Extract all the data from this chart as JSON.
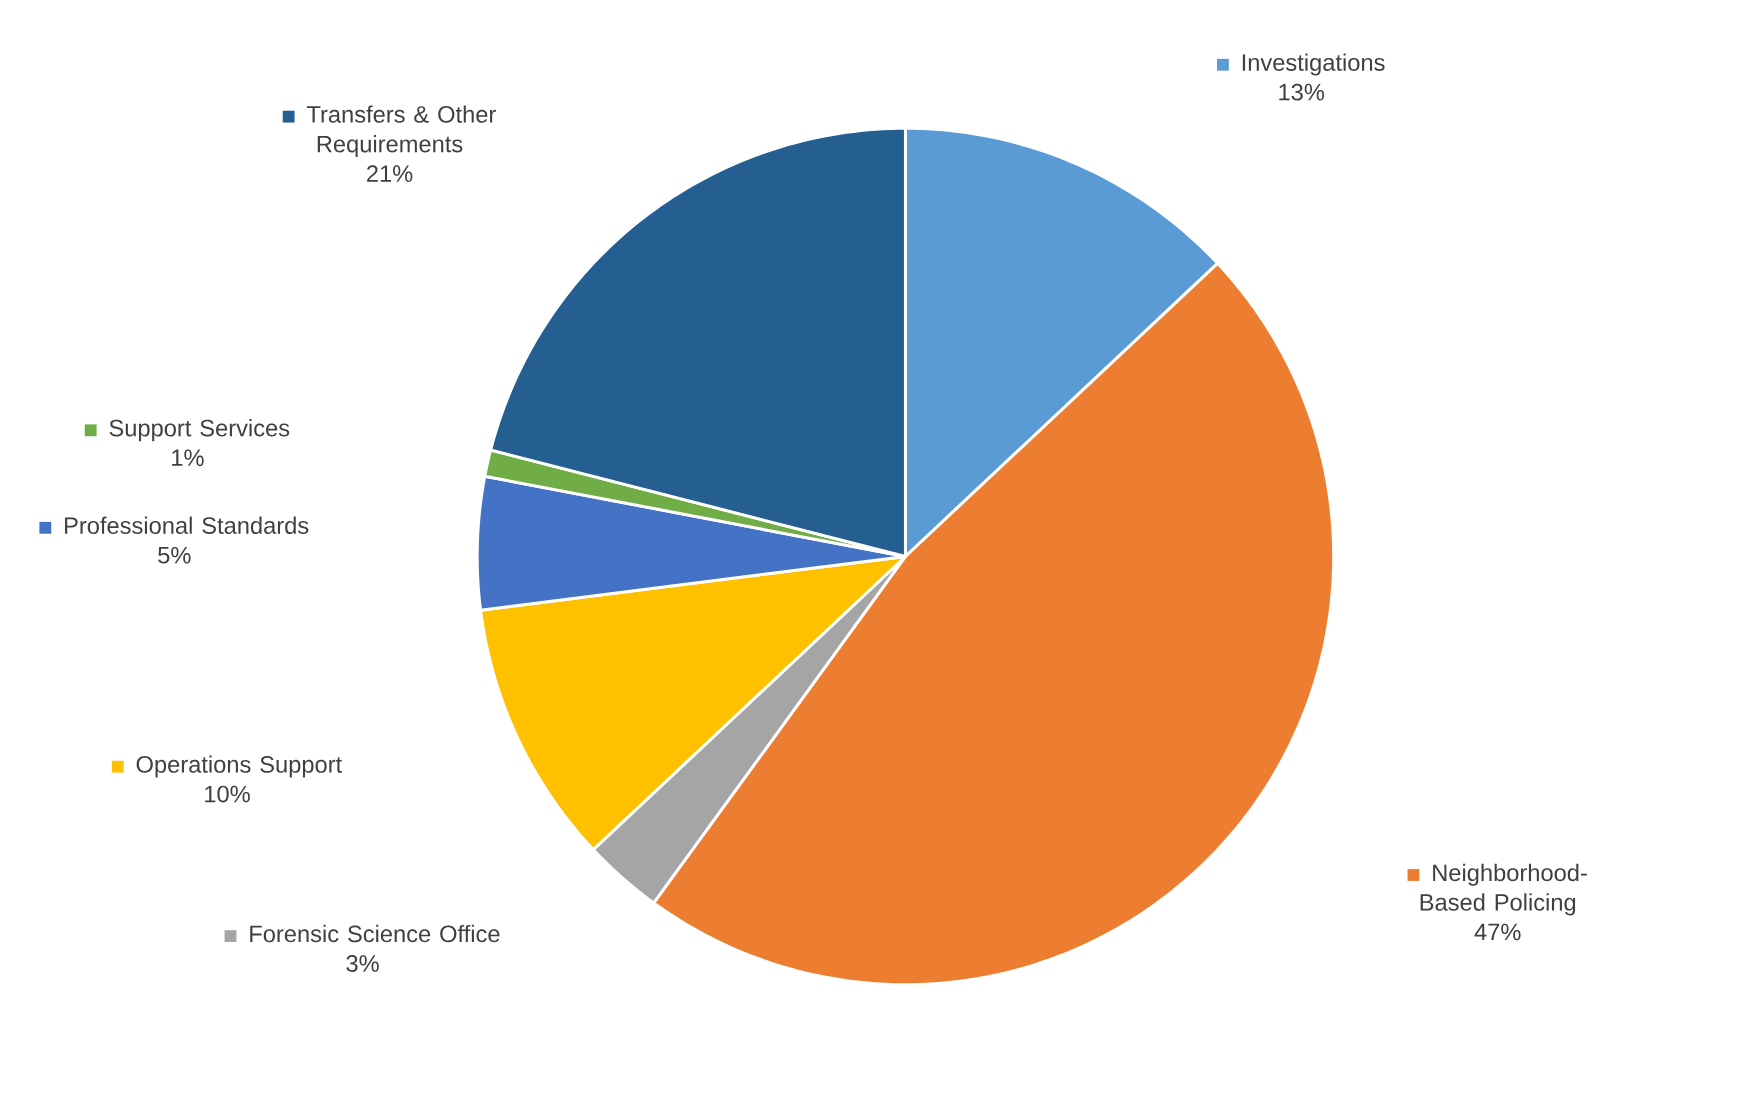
{
  "chart_data": {
    "type": "pie",
    "categories": [
      "Investigations",
      "Neighborhood-Based Policing",
      "Forensic Science Office",
      "Operations Support",
      "Professional Standards",
      "Support Services",
      "Transfers & Other Requirements"
    ],
    "values": [
      13,
      47,
      3,
      10,
      5,
      1,
      21
    ],
    "value_labels": [
      "13%",
      "47%",
      "3%",
      "10%",
      "5%",
      "1%",
      "21%"
    ],
    "legend": "left",
    "colors": [
      "#5b9bd5",
      "#ed7d31",
      "#a5a5a5",
      "#ffc000",
      "#4472c4",
      "#70ad47",
      "#255e91"
    ]
  }
}
